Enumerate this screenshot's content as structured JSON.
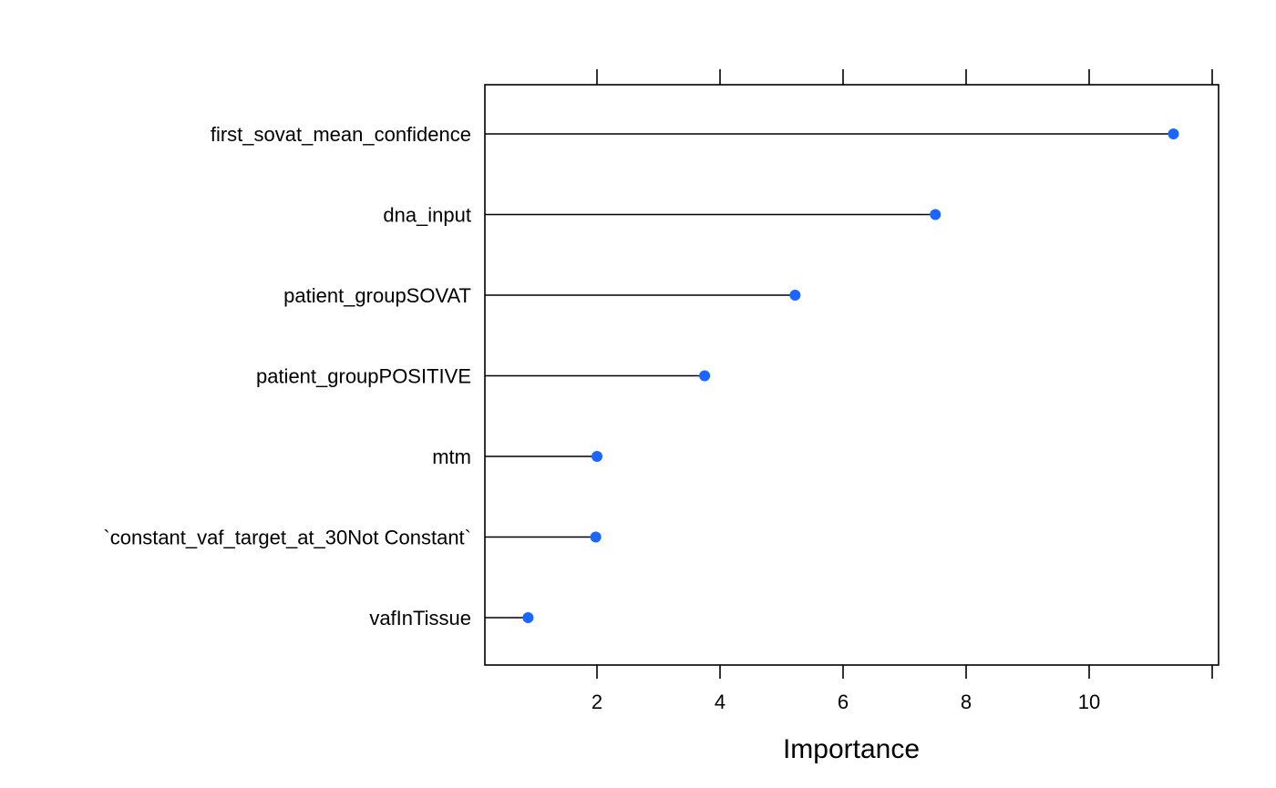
{
  "chart_data": {
    "type": "dotplot",
    "title": "",
    "xlabel": "Importance",
    "ylabel": "",
    "xlim": [
      0.25,
      12.0
    ],
    "x_ticks": [
      2,
      4,
      6,
      8,
      10
    ],
    "grid": false,
    "categories": [
      "first_sovat_mean_confidence",
      "dna_input",
      "patient_groupSOVAT",
      "patient_groupPOSITIVE",
      "mtm",
      "`constant_vaf_target_at_30Not Constant`",
      "vafInTissue"
    ],
    "values": [
      11.37,
      7.5,
      5.22,
      3.75,
      2.0,
      1.98,
      0.88
    ],
    "point_color": "#1a66ff",
    "line_color": "#000000"
  }
}
